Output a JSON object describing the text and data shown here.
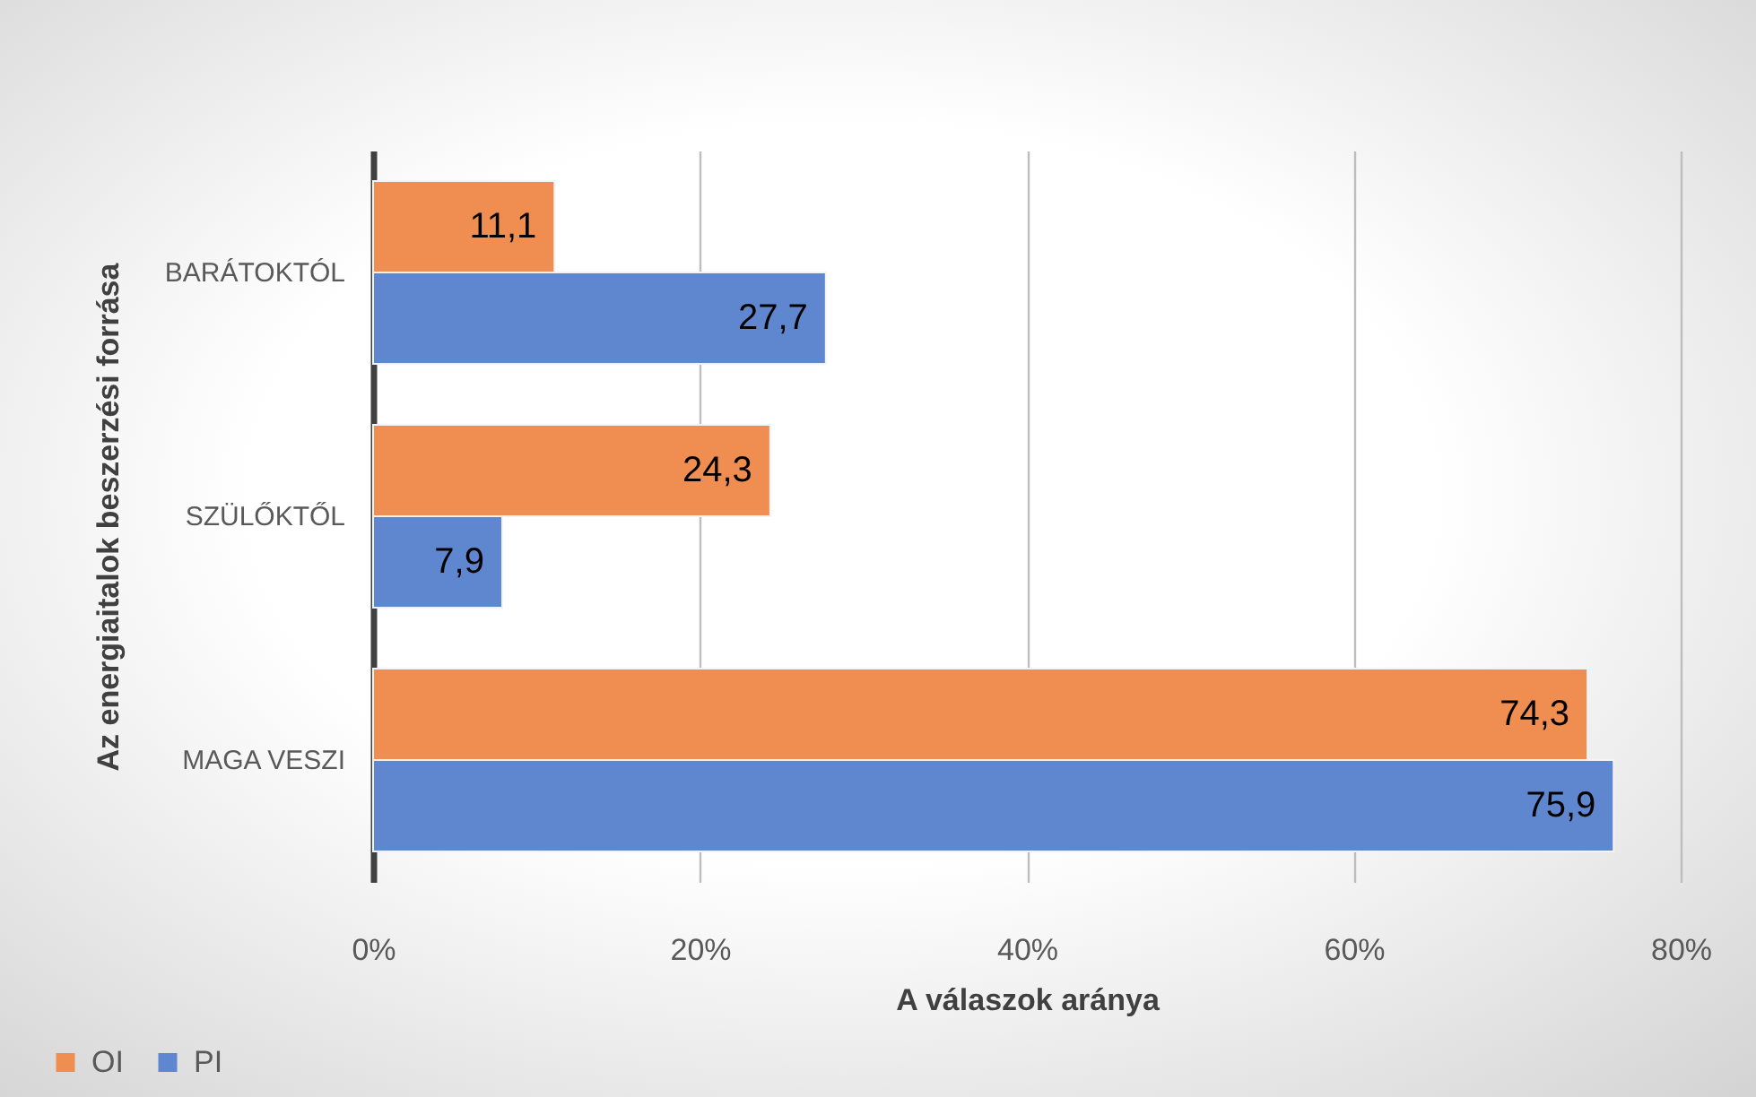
{
  "chart_data": {
    "type": "bar",
    "orientation": "horizontal",
    "xlabel": "A válaszok aránya",
    "ylabel": "Az energiaitalok beszerzési forrása",
    "categories": [
      "BARÁTOKTÓL",
      "SZÜLŐKTŐL",
      "MAGA VESZI"
    ],
    "series": [
      {
        "name": "OI",
        "color": "#ef8e50",
        "values": [
          11.1,
          24.3,
          74.3
        ],
        "value_labels": [
          "11,1",
          "24,3",
          "74,3"
        ]
      },
      {
        "name": "PI",
        "color": "#5e87cf",
        "values": [
          27.7,
          7.9,
          75.9
        ],
        "value_labels": [
          "27,7",
          "7,9",
          "75,9"
        ]
      }
    ],
    "xlim": [
      0,
      80
    ],
    "xticks": [
      {
        "value": 0,
        "label": "0%"
      },
      {
        "value": 20,
        "label": "20%"
      },
      {
        "value": 40,
        "label": "40%"
      },
      {
        "value": 60,
        "label": "60%"
      },
      {
        "value": 80,
        "label": "80%"
      }
    ],
    "grid": "x",
    "legend": "bottom left"
  }
}
